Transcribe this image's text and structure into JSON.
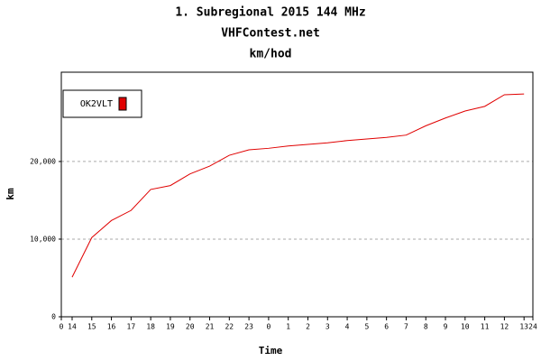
{
  "chart_data": {
    "type": "line",
    "title": "1. Subregional 2015 144 MHz",
    "subtitle": "VHFContest.net",
    "subtitle2": "km/hod",
    "x_label": "Time",
    "y_label": "km",
    "x": [
      0.55,
      1.55,
      2.55,
      3.55,
      4.55,
      5.55,
      6.55,
      7.55,
      8.55,
      9.55,
      10.55,
      11.55,
      12.55,
      13.55,
      14.55,
      15.55,
      16.55,
      17.55,
      18.55,
      19.55,
      20.55,
      21.55,
      22.55,
      23.55
    ],
    "series": [
      {
        "name": "OK2VLT",
        "color": "#e00000",
        "values": [
          5100,
          10200,
          12400,
          13700,
          16400,
          16900,
          18400,
          19400,
          20800,
          21500,
          21700,
          22000,
          22200,
          22400,
          22700,
          22900,
          23100,
          23400,
          24600,
          25600,
          26500,
          27100,
          28600,
          28700
        ]
      }
    ],
    "xlim": [
      0,
      24
    ],
    "xticks": [
      {
        "value": 0,
        "label": "0"
      },
      {
        "value": 0.55,
        "label": "14"
      },
      {
        "value": 1.55,
        "label": "15"
      },
      {
        "value": 2.55,
        "label": "16"
      },
      {
        "value": 3.55,
        "label": "17"
      },
      {
        "value": 4.55,
        "label": "18"
      },
      {
        "value": 5.55,
        "label": "19"
      },
      {
        "value": 6.55,
        "label": "20"
      },
      {
        "value": 7.55,
        "label": "21"
      },
      {
        "value": 8.55,
        "label": "22"
      },
      {
        "value": 9.55,
        "label": "23"
      },
      {
        "value": 10.55,
        "label": "0"
      },
      {
        "value": 11.55,
        "label": "1"
      },
      {
        "value": 12.55,
        "label": "2"
      },
      {
        "value": 13.55,
        "label": "3"
      },
      {
        "value": 14.55,
        "label": "4"
      },
      {
        "value": 15.55,
        "label": "5"
      },
      {
        "value": 16.55,
        "label": "6"
      },
      {
        "value": 17.55,
        "label": "7"
      },
      {
        "value": 18.55,
        "label": "8"
      },
      {
        "value": 19.55,
        "label": "9"
      },
      {
        "value": 20.55,
        "label": "10"
      },
      {
        "value": 21.55,
        "label": "11"
      },
      {
        "value": 22.55,
        "label": "12"
      },
      {
        "value": 23.55,
        "label": "13"
      },
      {
        "value": 24,
        "label": "24"
      }
    ],
    "ylim": [
      0,
      31500
    ],
    "yticks": [
      0,
      {
        "value": 10000,
        "label": "10,000"
      },
      {
        "value": 20000,
        "label": "20,000"
      }
    ],
    "grid": true,
    "legend": "upper-left"
  }
}
